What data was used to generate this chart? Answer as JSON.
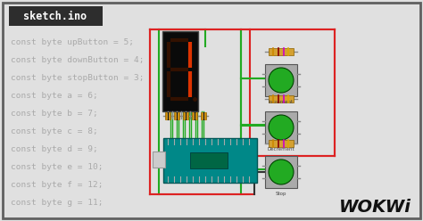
{
  "bg_color": "#e0e0e0",
  "border_color": "#606060",
  "title_bg": "#2d2d2d",
  "title_text": "sketch.ino",
  "title_color": "#ffffff",
  "code_lines": [
    "const byte upButton = 5;",
    "const byte downButton = 4;",
    "const byte stopButton = 3;",
    "const byte a = 6;",
    "const byte b = 7;",
    "const byte c = 8;",
    "const byte d = 9;",
    "const byte e = 10;",
    "const byte f = 12;",
    "const byte g = 11;"
  ],
  "code_color": "#aaaaaa",
  "code_fontsize": 6.8,
  "wokwi_text": "WOKWi",
  "wokwi_color": "#111111",
  "red_wire": "#dd2222",
  "green_wire": "#22aa22",
  "dark_wire": "#333333",
  "arduino_fill": "#008888",
  "arduino_edge": "#005555",
  "display_bg": "#0a0a0a",
  "seg_on": "#dd3300",
  "seg_off": "#331100",
  "res_body": "#d4a030",
  "btn_fill": "#22aa22",
  "btn_bg": "#999999",
  "btn_label_color": "#444444"
}
